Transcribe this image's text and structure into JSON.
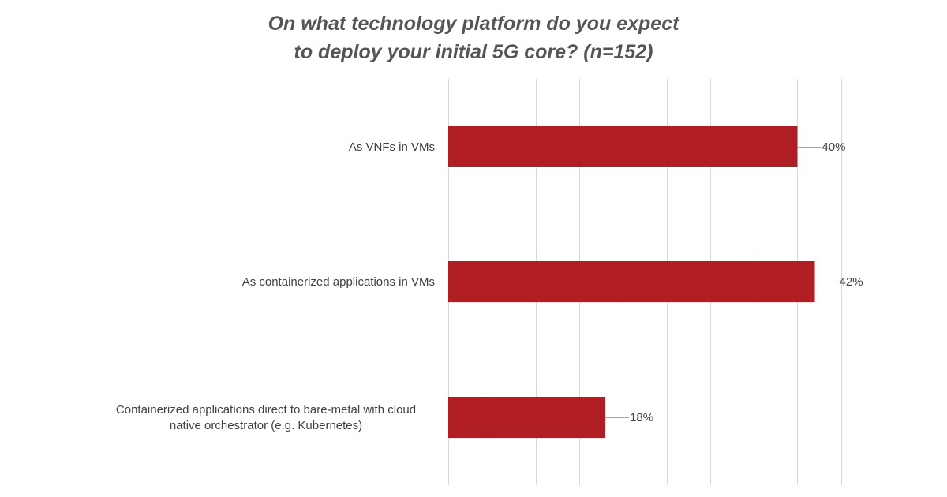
{
  "chart_data": {
    "type": "bar",
    "orientation": "horizontal",
    "title_lines": [
      "On what technology platform do you expect",
      "to deploy your initial 5G core? (n=152)"
    ],
    "categories": [
      [
        "As VNFs in VMs"
      ],
      [
        "As containerized applications in VMs"
      ],
      [
        "Containerized applications direct to bare-metal with cloud",
        "native orchestrator (e.g. Kubernetes)"
      ]
    ],
    "values": [
      40,
      42,
      18
    ],
    "value_labels": [
      "40%",
      "42%",
      "18%"
    ],
    "xlim": [
      0,
      45
    ],
    "grid": true,
    "legend": "none",
    "bar_color": "#b01e24",
    "grid_color": "#d9d9d9",
    "leader_color": "#a6a6a6"
  }
}
